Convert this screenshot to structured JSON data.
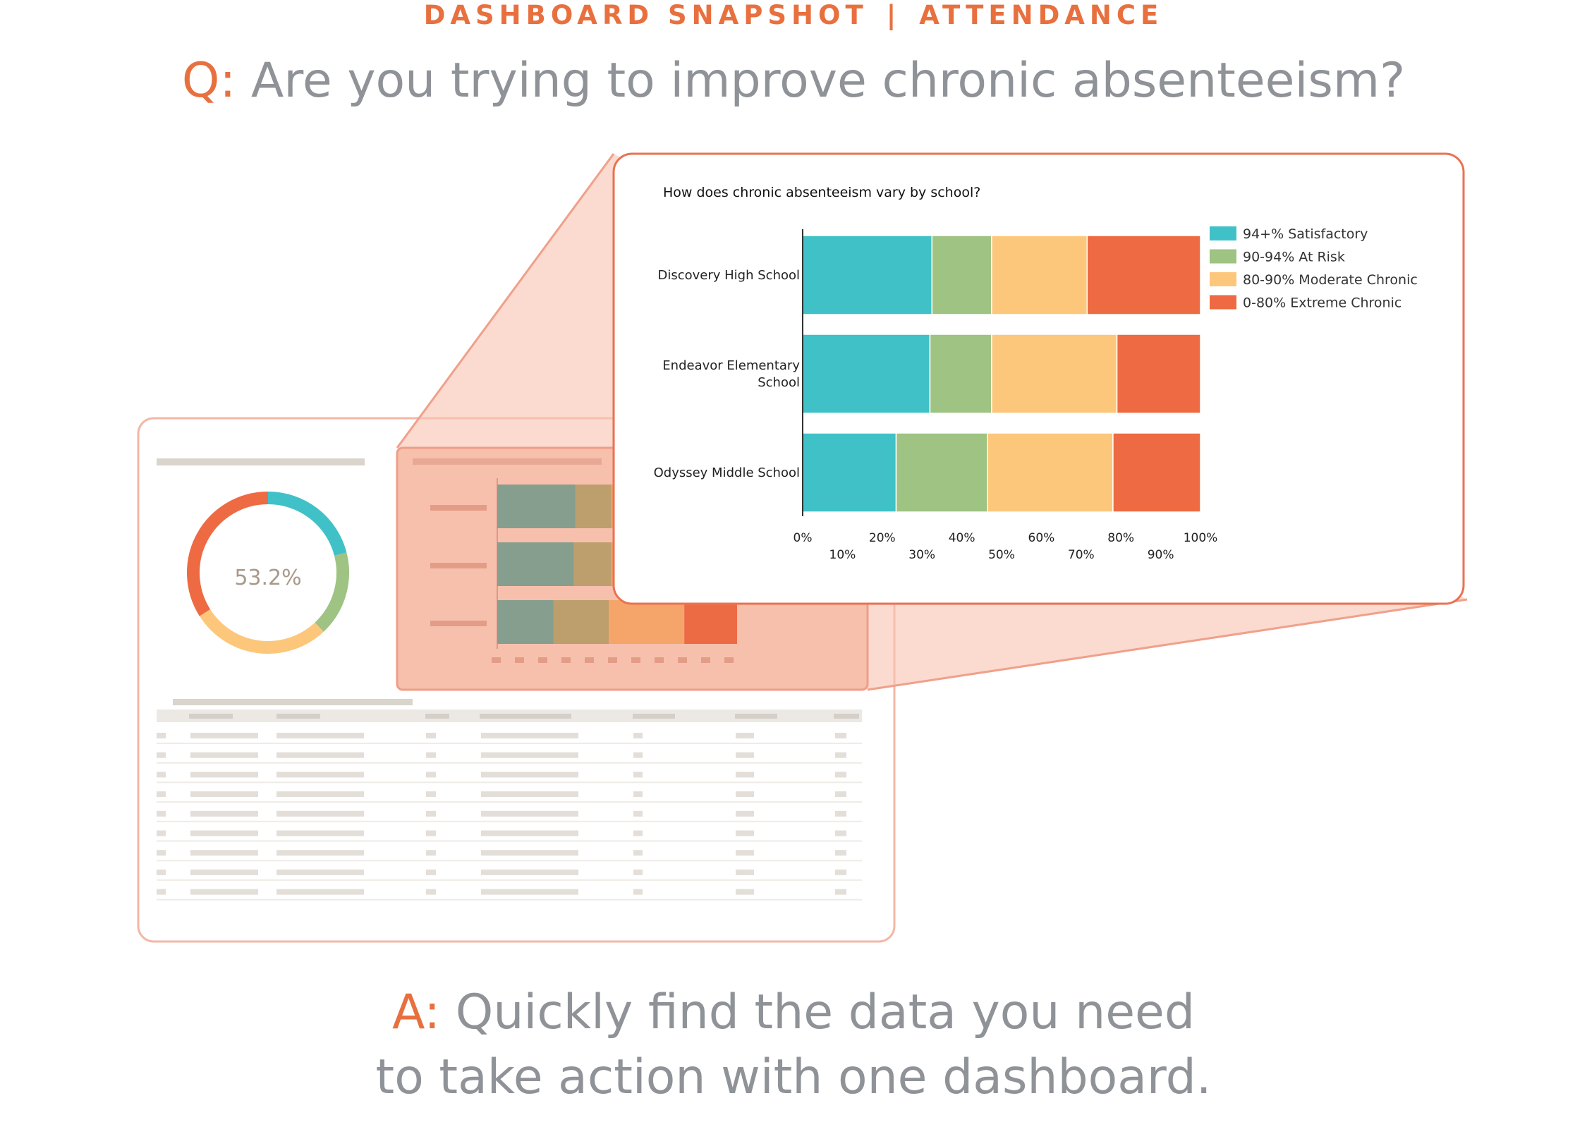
{
  "header": {
    "kicker_left": "DASHBOARD SNAPSHOT",
    "kicker_sep": "|",
    "kicker_right": "ATTENDANCE",
    "question_prefix": "Q:",
    "question_text": " Are you trying to improve chronic absenteeism?"
  },
  "footer": {
    "answer_prefix": "A:",
    "answer_line1": " Quickly find the data you need",
    "answer_line2": "to take action with one dashboard."
  },
  "mini_dashboard": {
    "donut_label": "53.2%",
    "donut_values": [
      21,
      17,
      28,
      34
    ],
    "table_rows": 9
  },
  "colors": {
    "satisfactory": "#40c1c8",
    "at_risk": "#9ec383",
    "moderate": "#fdc77b",
    "extreme": "#ee6a42",
    "accent": "#e8703f",
    "callout_fill": "#f8c3b3"
  },
  "chart_data": {
    "type": "bar",
    "orientation": "horizontal",
    "stacked": true,
    "title": "How does chronic absenteeism vary by school?",
    "categories": [
      "Discovery High School",
      "Endeavor Elementary School",
      "Odyssey Middle School"
    ],
    "category_lines": [
      [
        "Discovery High School"
      ],
      [
        "Endeavor Elementary",
        "School"
      ],
      [
        "Odyssey Middle School"
      ]
    ],
    "series": [
      {
        "name": "94+% Satisfactory",
        "values": [
          32.5,
          32,
          23.5
        ],
        "color": "#40c1c8"
      },
      {
        "name": "90-94% At Risk",
        "values": [
          15,
          15.5,
          23
        ],
        "color": "#9ec383"
      },
      {
        "name": "80-90% Moderate Chronic",
        "values": [
          24,
          31.5,
          31.5
        ],
        "color": "#fdc77b"
      },
      {
        "name": "0-80% Extreme Chronic",
        "values": [
          28.5,
          21,
          22
        ],
        "color": "#ee6a42"
      }
    ],
    "xlim": [
      0,
      100
    ],
    "ticks_upper": [
      0,
      20,
      40,
      60,
      80,
      100
    ],
    "ticks_lower": [
      10,
      30,
      50,
      70,
      90
    ],
    "tick_suffix": "%",
    "grid": false,
    "legend_position": "right"
  }
}
